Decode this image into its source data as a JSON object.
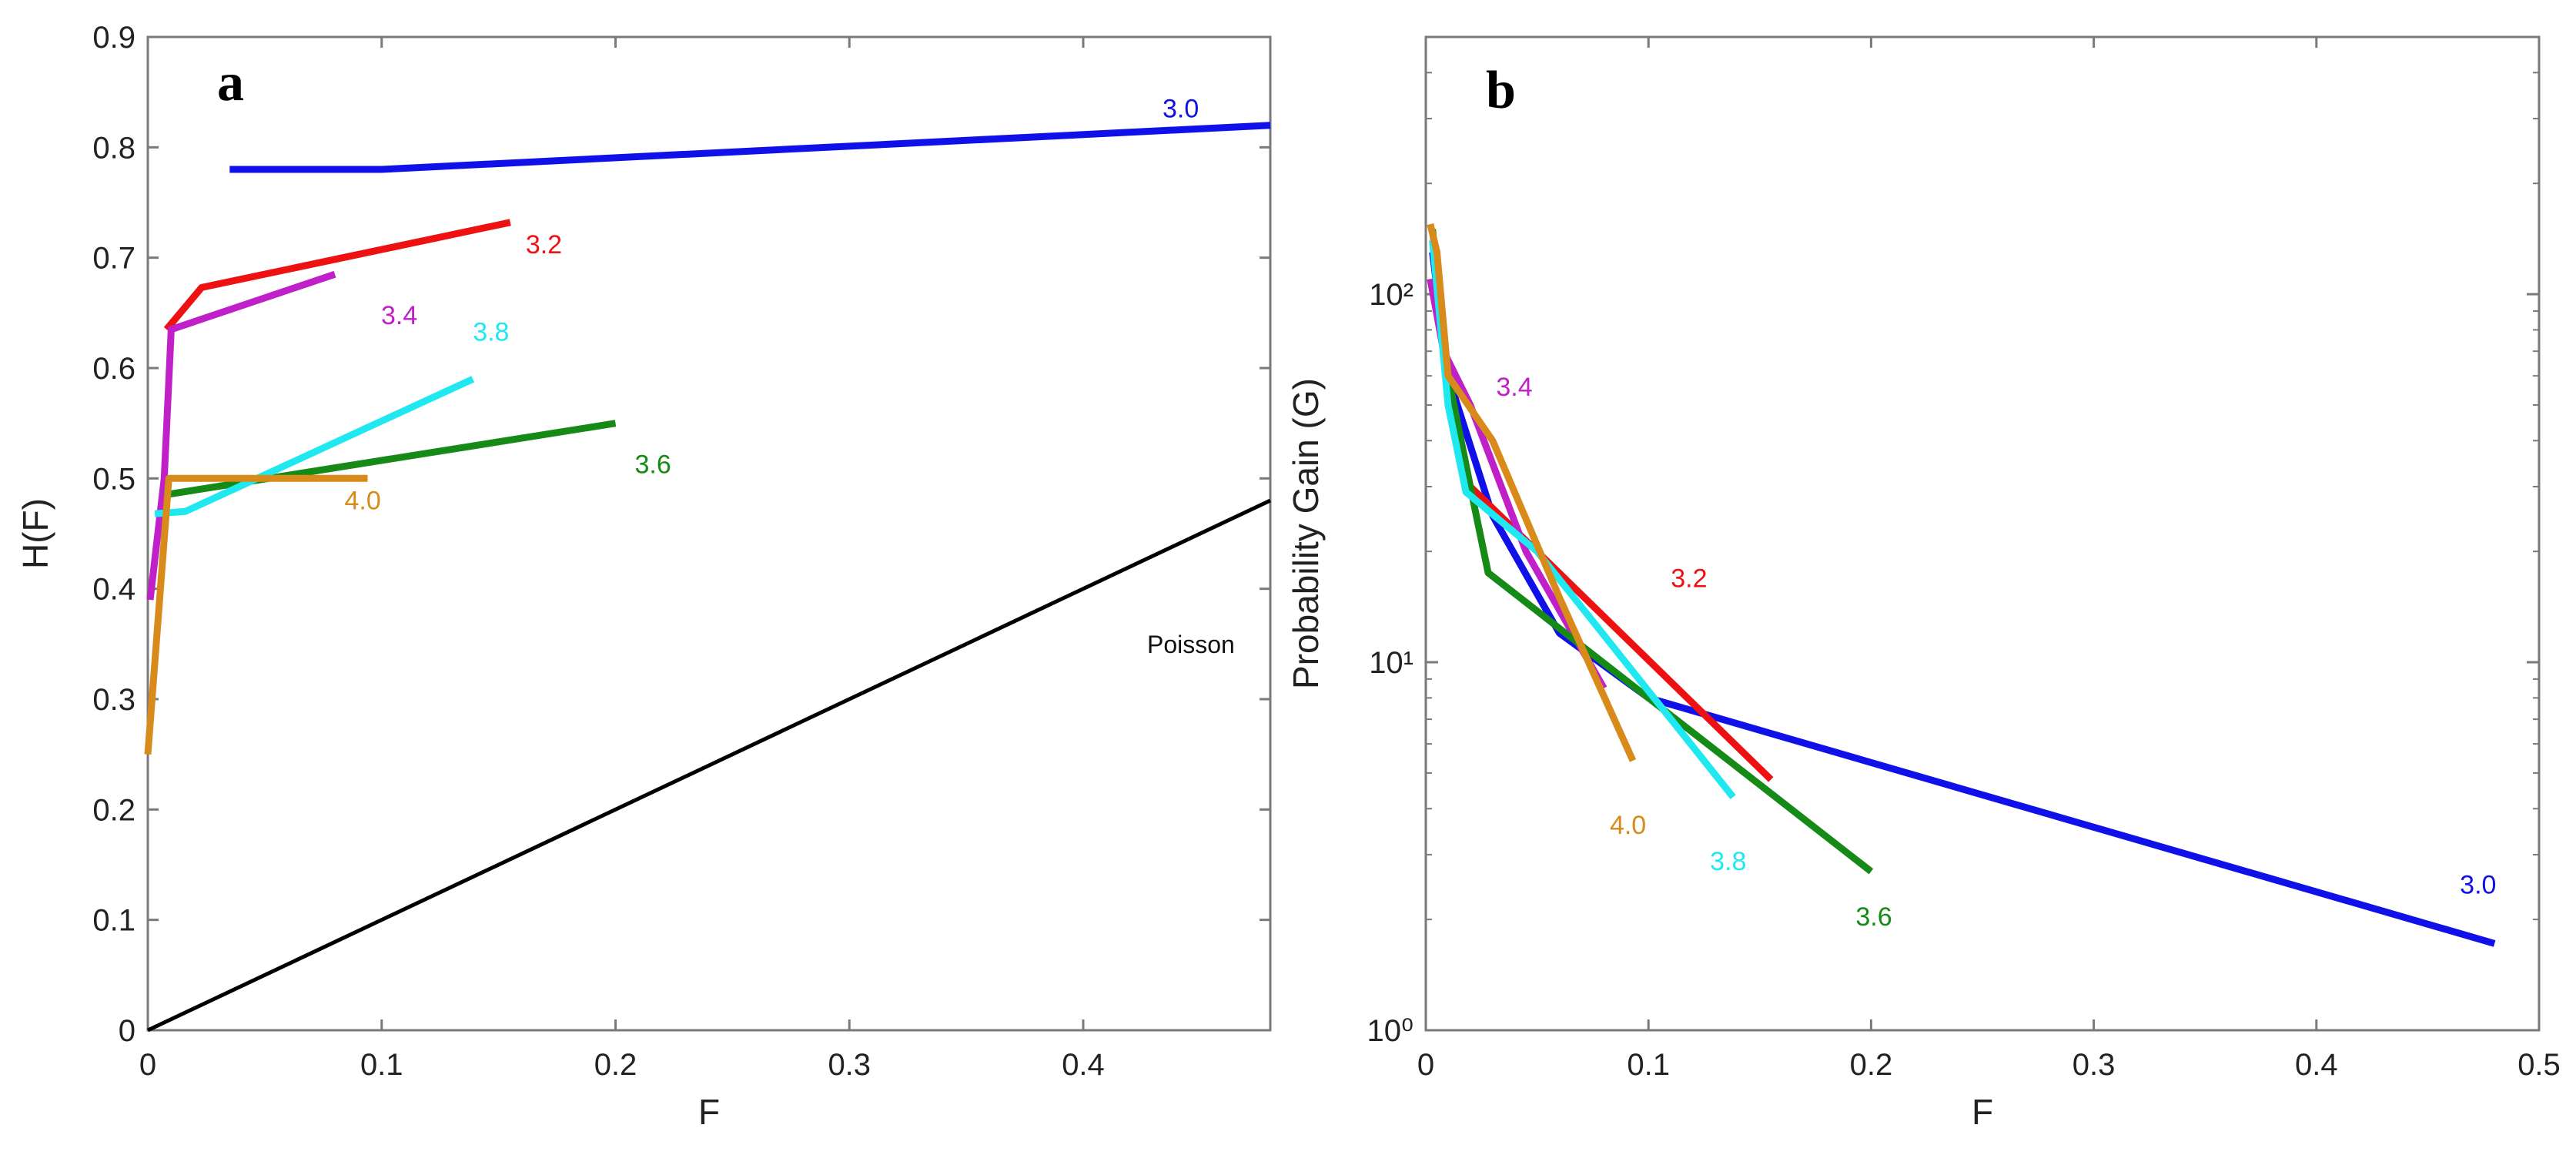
{
  "panels": [
    {
      "id": "a",
      "panel_label": "a",
      "xlabel": "F",
      "ylabel": "H(F)",
      "xticks": [
        "0",
        "0.1",
        "0.2",
        "0.3",
        "0.4"
      ],
      "yticks": [
        "0",
        "0.1",
        "0.2",
        "0.3",
        "0.4",
        "0.5",
        "0.6",
        "0.7",
        "0.8",
        "0.9"
      ],
      "annotation": "Poisson"
    },
    {
      "id": "b",
      "panel_label": "b",
      "xlabel": "F",
      "ylabel": "Probability Gain (G)",
      "xticks": [
        "0",
        "0.1",
        "0.2",
        "0.3",
        "0.4",
        "0.5"
      ],
      "yticks": [
        "10⁰",
        "10¹",
        "10²"
      ]
    }
  ],
  "colors": {
    "3.0": "#1010e8",
    "3.2": "#ee1111",
    "3.4": "#c020c8",
    "3.6": "#168a16",
    "3.8": "#20e8f0",
    "4.0": "#d88a1a",
    "poisson": "#000000"
  },
  "chart_data": [
    {
      "type": "line",
      "title": "",
      "xlabel": "F",
      "ylabel": "H(F)",
      "xlim": [
        0,
        0.48
      ],
      "ylim": [
        0,
        0.9
      ],
      "grid": false,
      "series": [
        {
          "name": "3.0",
          "x": [
            0.035,
            0.1,
            0.48
          ],
          "y": [
            0.78,
            0.78,
            0.82
          ]
        },
        {
          "name": "3.2",
          "x": [
            0.008,
            0.023,
            0.155
          ],
          "y": [
            0.635,
            0.673,
            0.732
          ]
        },
        {
          "name": "3.4",
          "x": [
            0.001,
            0.007,
            0.01,
            0.08
          ],
          "y": [
            0.39,
            0.5,
            0.635,
            0.685
          ]
        },
        {
          "name": "3.6",
          "x": [
            0.007,
            0.2
          ],
          "y": [
            0.485,
            0.55
          ]
        },
        {
          "name": "3.8",
          "x": [
            0.003,
            0.016,
            0.139
          ],
          "y": [
            0.468,
            0.47,
            0.59
          ]
        },
        {
          "name": "4.0",
          "x": [
            0.0,
            0.009,
            0.094
          ],
          "y": [
            0.25,
            0.5,
            0.5
          ]
        },
        {
          "name": "Poisson",
          "x": [
            0,
            0.48
          ],
          "y": [
            0,
            0.48
          ]
        }
      ]
    },
    {
      "type": "line",
      "title": "",
      "xlabel": "F",
      "ylabel": "Probability Gain (G)",
      "xlim": [
        0,
        0.5
      ],
      "ylim": [
        1,
        500
      ],
      "yscale": "log",
      "grid": false,
      "series": [
        {
          "name": "3.0",
          "x": [
            0.003,
            0.01,
            0.03,
            0.06,
            0.1,
            0.48
          ],
          "y": [
            130,
            60,
            25,
            12,
            8,
            1.72
          ]
        },
        {
          "name": "3.2",
          "x": [
            0.003,
            0.01,
            0.02,
            0.05,
            0.155
          ],
          "y": [
            140,
            60,
            30,
            20,
            4.8
          ]
        },
        {
          "name": "3.4",
          "x": [
            0.002,
            0.008,
            0.02,
            0.045,
            0.08
          ],
          "y": [
            110,
            70,
            50,
            20,
            8.5
          ]
        },
        {
          "name": "3.6",
          "x": [
            0.003,
            0.01,
            0.02,
            0.028,
            0.1,
            0.2
          ],
          "y": [
            150,
            60,
            30,
            17.5,
            8,
            2.7
          ]
        },
        {
          "name": "3.8",
          "x": [
            0.003,
            0.01,
            0.018,
            0.05,
            0.138
          ],
          "y": [
            140,
            50,
            29,
            20,
            4.3
          ]
        },
        {
          "name": "4.0",
          "x": [
            0.002,
            0.005,
            0.01,
            0.03,
            0.06,
            0.093
          ],
          "y": [
            155,
            130,
            60,
            40,
            15,
            5.4
          ]
        }
      ]
    }
  ]
}
